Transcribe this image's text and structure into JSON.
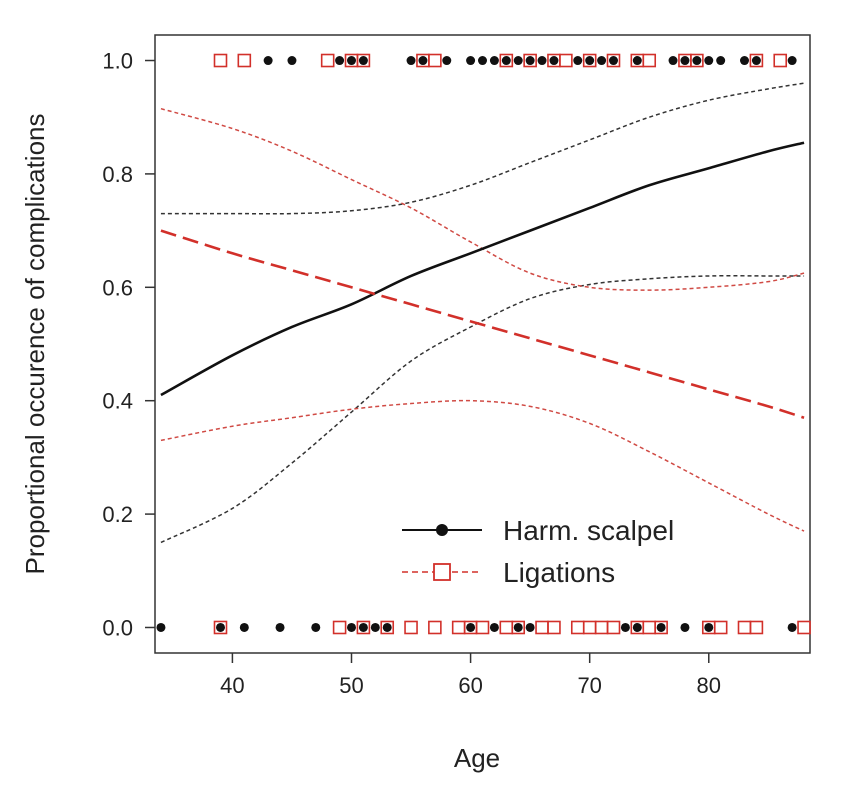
{
  "chart_data": {
    "type": "scatter",
    "xlabel": "Age",
    "ylabel": "Proportional occurence of complications",
    "xlim": [
      33.5,
      88.5
    ],
    "ylim": [
      -0.045,
      1.045
    ],
    "xticks": [
      40,
      50,
      60,
      70,
      80
    ],
    "yticks": [
      0.0,
      0.2,
      0.4,
      0.6,
      0.8,
      1.0
    ],
    "ytick_labels": [
      "0.0",
      "0.2",
      "0.4",
      "0.6",
      "0.8",
      "1.0"
    ],
    "legend_position": "bottom-right",
    "series": [
      {
        "name": "Harm. scalpel",
        "color": "#111111",
        "marker": "filled-circle",
        "line_style": "solid",
        "points_y1": [
          43,
          45,
          49,
          50,
          51,
          55,
          56,
          58,
          60,
          61,
          62,
          63,
          64,
          65,
          66,
          67,
          69,
          70,
          71,
          72,
          74,
          77,
          78,
          79,
          80,
          81,
          83,
          84,
          87
        ],
        "points_y0": [
          34,
          39,
          41,
          44,
          47,
          50,
          51,
          52,
          53,
          60,
          62,
          64,
          65,
          73,
          74,
          76,
          78,
          80,
          87
        ],
        "fit": {
          "x": [
            34,
            40,
            45,
            50,
            55,
            60,
            65,
            70,
            75,
            80,
            85,
            88
          ],
          "y": [
            0.41,
            0.48,
            0.53,
            0.57,
            0.62,
            0.66,
            0.7,
            0.74,
            0.78,
            0.81,
            0.84,
            0.855
          ]
        },
        "ci_upper": {
          "x": [
            34,
            40,
            45,
            50,
            55,
            60,
            65,
            70,
            75,
            80,
            85,
            88
          ],
          "y": [
            0.73,
            0.73,
            0.73,
            0.735,
            0.75,
            0.78,
            0.82,
            0.86,
            0.9,
            0.93,
            0.95,
            0.96
          ]
        },
        "ci_lower": {
          "x": [
            34,
            40,
            45,
            50,
            55,
            60,
            65,
            70,
            75,
            80,
            85,
            88
          ],
          "y": [
            0.15,
            0.21,
            0.29,
            0.38,
            0.47,
            0.53,
            0.58,
            0.605,
            0.615,
            0.62,
            0.62,
            0.62
          ]
        }
      },
      {
        "name": "Ligations",
        "color": "#d2302a",
        "marker": "open-square",
        "line_style": "dashed",
        "points_y1": [
          39,
          41,
          48,
          50,
          51,
          56,
          57,
          63,
          65,
          67,
          68,
          70,
          72,
          74,
          75,
          78,
          79,
          84,
          86
        ],
        "points_y0": [
          39,
          49,
          51,
          53,
          55,
          57,
          59,
          60,
          61,
          63,
          64,
          66,
          67,
          69,
          70,
          71,
          72,
          74,
          75,
          76,
          80,
          81,
          83,
          84,
          88
        ],
        "fit": {
          "x": [
            34,
            40,
            45,
            50,
            55,
            60,
            65,
            70,
            75,
            80,
            85,
            88
          ],
          "y": [
            0.7,
            0.66,
            0.63,
            0.6,
            0.57,
            0.54,
            0.51,
            0.48,
            0.45,
            0.42,
            0.39,
            0.37
          ]
        },
        "ci_upper": {
          "x": [
            34,
            40,
            45,
            50,
            55,
            60,
            65,
            70,
            75,
            80,
            85,
            88
          ],
          "y": [
            0.915,
            0.88,
            0.84,
            0.79,
            0.74,
            0.68,
            0.625,
            0.6,
            0.595,
            0.6,
            0.61,
            0.625
          ]
        },
        "ci_lower": {
          "x": [
            34,
            40,
            45,
            50,
            55,
            60,
            65,
            70,
            75,
            80,
            85,
            88
          ],
          "y": [
            0.33,
            0.355,
            0.37,
            0.385,
            0.395,
            0.4,
            0.39,
            0.36,
            0.31,
            0.255,
            0.2,
            0.17
          ]
        }
      }
    ]
  }
}
